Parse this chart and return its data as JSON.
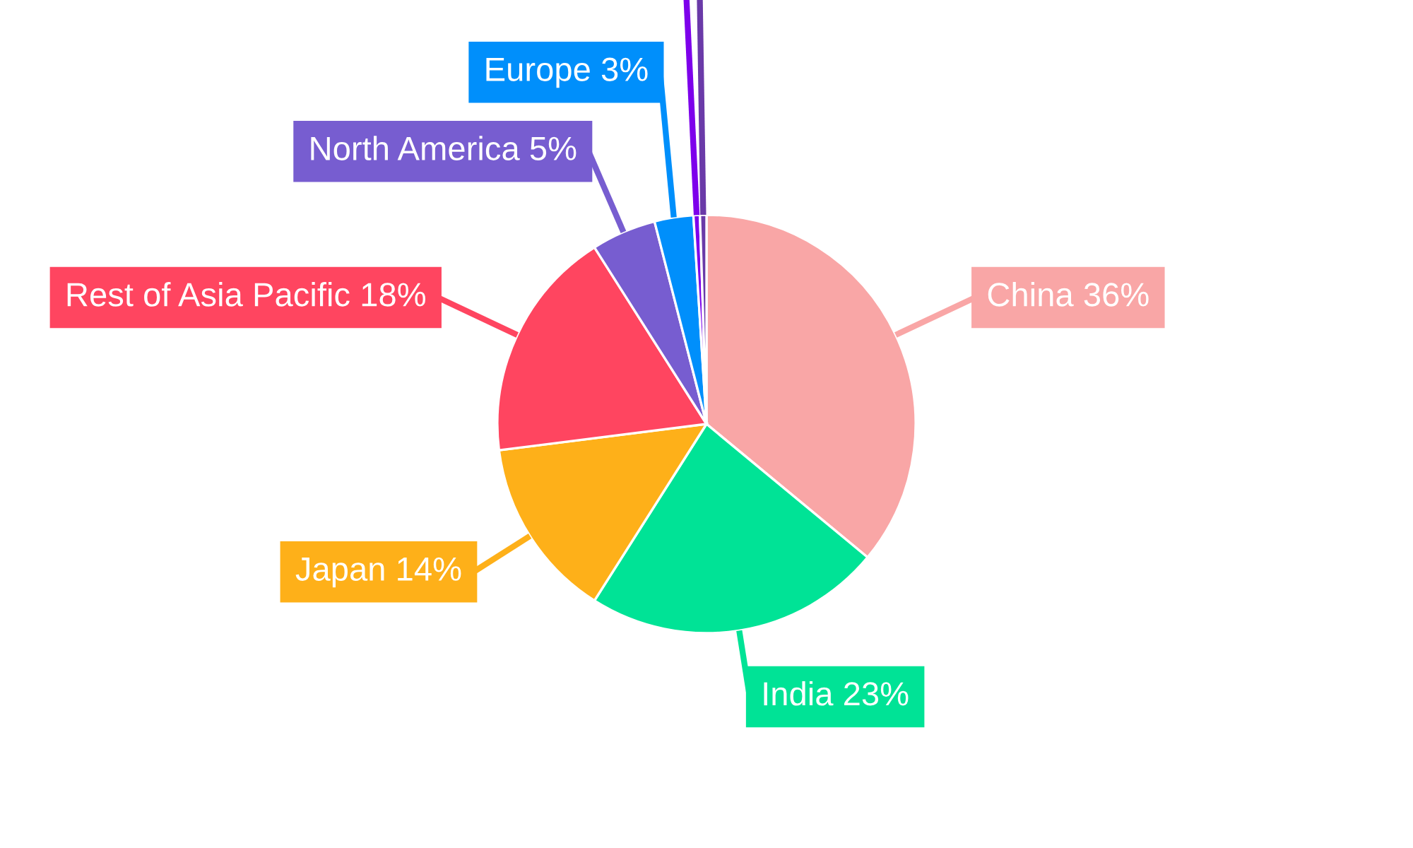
{
  "chart_data": {
    "type": "pie",
    "categories": [
      "China",
      "India",
      "Japan",
      "Rest of Asia Pacific",
      "North America",
      "Europe",
      null,
      null
    ],
    "values": [
      36,
      23,
      14,
      18,
      5,
      3,
      0.5,
      0.5
    ],
    "value_labels": [
      "36%",
      "23%",
      "14%",
      "18%",
      "5%",
      "3%",
      null,
      null
    ],
    "colors": [
      "#f9a6a6",
      "#00e396",
      "#feb019",
      "#ff4560",
      "#775dd0",
      "#008ffb",
      "#7d00eb",
      "#6a3aa8"
    ]
  }
}
